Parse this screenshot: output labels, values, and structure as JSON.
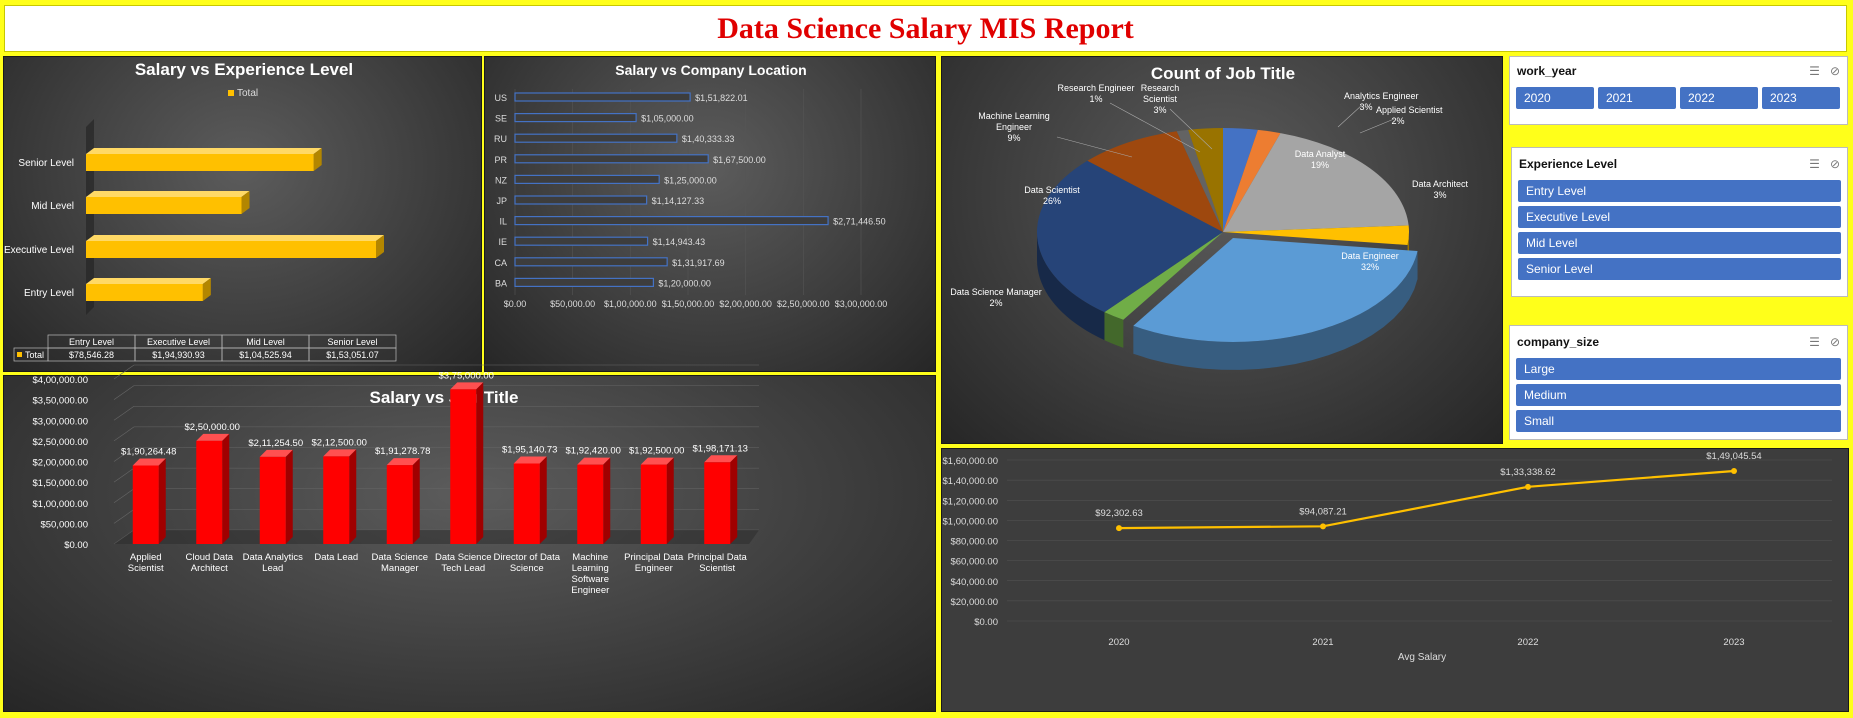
{
  "report_title": "Data Science Salary MIS Report",
  "colors": {
    "background": "#ffff1a",
    "title": "#e00000",
    "gold": "#ffc000",
    "red": "#ff0000",
    "blue": "#4472c4"
  },
  "slicers": {
    "work_year": {
      "title": "work_year",
      "items": [
        "2020",
        "2021",
        "2022",
        "2023"
      ]
    },
    "experience": {
      "title": "Experience Level",
      "items": [
        "Entry Level",
        "Executive Level",
        "Mid Level",
        "Senior Level"
      ]
    },
    "company_size": {
      "title": "company_size",
      "items": [
        "Large",
        "Medium",
        "Small"
      ]
    }
  },
  "chart_data": [
    {
      "id": "experience",
      "type": "bar",
      "title": "Salary vs Experience Level",
      "legend": "Total",
      "categories": [
        "Entry Level",
        "Executive Level",
        "Mid Level",
        "Senior Level"
      ],
      "values": [
        78546.28,
        194930.93,
        104525.94,
        153051.07
      ],
      "value_labels": [
        "$78,546.28",
        "$1,94,930.93",
        "$1,04,525.94",
        "$1,53,051.07"
      ],
      "table_row_label": "Total"
    },
    {
      "id": "location",
      "type": "bar",
      "title": "Salary vs Company Location",
      "categories": [
        "US",
        "SE",
        "RU",
        "PR",
        "NZ",
        "JP",
        "IL",
        "IE",
        "CA",
        "BA"
      ],
      "values": [
        151822.01,
        105000.0,
        140333.33,
        167500.0,
        125000.0,
        114127.33,
        271446.5,
        114943.43,
        131917.69,
        120000.0
      ],
      "value_labels": [
        "$1,51,822.01",
        "$1,05,000.00",
        "$1,40,333.33",
        "$1,67,500.00",
        "$1,25,000.00",
        "$1,14,127.33",
        "$2,71,446.50",
        "$1,14,943.43",
        "$1,31,917.69",
        "$1,20,000.00"
      ],
      "xlim": [
        0,
        300000
      ],
      "x_ticks": [
        "$0.00",
        "$50,000.00",
        "$1,00,000.00",
        "$1,50,000.00",
        "$2,00,000.00",
        "$2,50,000.00",
        "$3,00,000.00"
      ]
    },
    {
      "id": "job_count",
      "type": "pie",
      "title": "Count of Job Title",
      "labels": [
        "Analytics Engineer",
        "Applied Scientist",
        "Data Analyst",
        "Data Architect",
        "Data Engineer",
        "Data Science Manager",
        "Data Scientist",
        "Machine Learning Engineer",
        "Research Engineer",
        "Research Scientist"
      ],
      "label_lines": [
        [
          "Analytics Engineer"
        ],
        [
          "Applied Scientist"
        ],
        [
          "Data Analyst"
        ],
        [
          "Data Architect"
        ],
        [
          "Data Engineer"
        ],
        [
          "Data Science Manager"
        ],
        [
          "Data Scientist"
        ],
        [
          "Machine Learning",
          "Engineer"
        ],
        [
          "Research Engineer"
        ],
        [
          "Research",
          "Scientist"
        ]
      ],
      "percents": [
        "3%",
        "2%",
        "19%",
        "3%",
        "32%",
        "2%",
        "26%",
        "9%",
        "1%",
        "3%"
      ],
      "values": [
        3,
        2,
        19,
        3,
        32,
        2,
        26,
        9,
        1,
        3
      ],
      "colors": [
        "#4472c4",
        "#ed7d31",
        "#a5a5a5",
        "#ffc000",
        "#5b9bd5",
        "#70ad47",
        "#264478",
        "#9e480e",
        "#636363",
        "#997300"
      ]
    },
    {
      "id": "job_salary",
      "type": "bar",
      "title": "Salary vs Job Title",
      "categories": [
        [
          "Applied",
          "Scientist"
        ],
        [
          "Cloud Data",
          "Architect"
        ],
        [
          "Data Analytics",
          "Lead"
        ],
        [
          "Data Lead"
        ],
        [
          "Data Science",
          "Manager"
        ],
        [
          "Data Science",
          "Tech Lead"
        ],
        [
          "Director of Data",
          "Science"
        ],
        [
          "Machine",
          "Learning",
          "Software",
          "Engineer"
        ],
        [
          "Principal Data",
          "Engineer"
        ],
        [
          "Principal Data",
          "Scientist"
        ]
      ],
      "values": [
        190264.48,
        250000.0,
        211254.5,
        212500.0,
        191278.78,
        375000.0,
        195140.73,
        192420.0,
        192500.0,
        198171.13
      ],
      "value_labels": [
        "$1,90,264.48",
        "$2,50,000.00",
        "$2,11,254.50",
        "$2,12,500.00",
        "$1,91,278.78",
        "$3,75,000.00",
        "$1,95,140.73",
        "$1,92,420.00",
        "$1,92,500.00",
        "$1,98,171.13"
      ],
      "ylim": [
        0,
        400000
      ],
      "y_ticks": [
        "$0.00",
        "$50,000.00",
        "$1,00,000.00",
        "$1,50,000.00",
        "$2,00,000.00",
        "$2,50,000.00",
        "$3,00,000.00",
        "$3,50,000.00",
        "$4,00,000.00"
      ]
    },
    {
      "id": "year_salary",
      "type": "line",
      "xlabel": "Avg Salary",
      "x": [
        "2020",
        "2021",
        "2022",
        "2023"
      ],
      "values": [
        92302.63,
        94087.21,
        133338.62,
        149045.54
      ],
      "value_labels": [
        "$92,302.63",
        "$94,087.21",
        "$1,33,338.62",
        "$1,49,045.54"
      ],
      "ylim": [
        0,
        160000
      ],
      "y_ticks": [
        "$0.00",
        "$20,000.00",
        "$40,000.00",
        "$60,000.00",
        "$80,000.00",
        "$1,00,000.00",
        "$1,20,000.00",
        "$1,40,000.00",
        "$1,60,000.00"
      ]
    }
  ]
}
